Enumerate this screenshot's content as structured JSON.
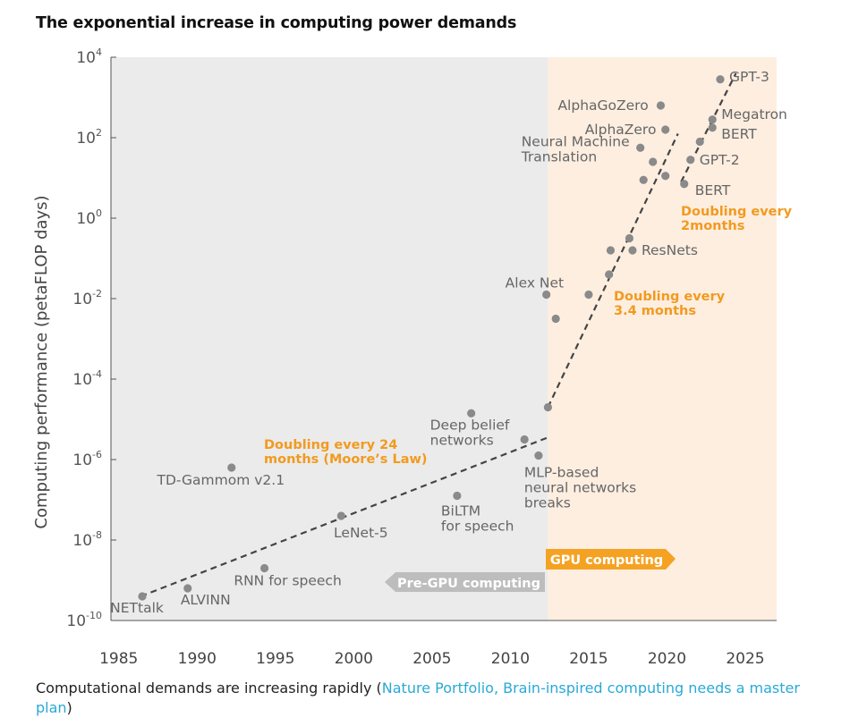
{
  "title": "The exponential increase in computing power demands",
  "caption": {
    "text": "Computational demands are increasing rapidly (",
    "source": "Nature Portfolio, Brain-inspired computing needs a master plan",
    "close": ")"
  },
  "colors": {
    "pre_gpu_bg": "#ebebeb",
    "gpu_bg": "#fdeee0",
    "point": "#8a8a8a",
    "trend": "#444444",
    "annotation_orange": "#f29a1e",
    "label_gray": "#666666",
    "pre_gpu_arrow": "#bdbdbd",
    "gpu_arrow": "#f5a223"
  },
  "chart_data": {
    "type": "scatter",
    "title": "The exponential increase in computing power demands",
    "xlabel": "",
    "ylabel": "Computing performance (petaFLOP days)",
    "xlim": [
      1984.5,
      2027
    ],
    "ylim": [
      -10,
      4
    ],
    "y_scale": "log10",
    "x_ticks": [
      1985,
      1990,
      1995,
      2000,
      2005,
      2010,
      2015,
      2020,
      2025
    ],
    "y_ticks": [
      {
        "base": "10",
        "exp": "4",
        "value": 4
      },
      {
        "base": "10",
        "exp": "2",
        "value": 2
      },
      {
        "base": "10",
        "exp": "0",
        "value": 0
      },
      {
        "base": "10",
        "exp": "-2",
        "value": -2
      },
      {
        "base": "10",
        "exp": "-4",
        "value": -4
      },
      {
        "base": "10",
        "exp": "-6",
        "value": -6
      },
      {
        "base": "10",
        "exp": "-8",
        "value": -8
      },
      {
        "base": "10",
        "exp": "-10",
        "value": -10
      }
    ],
    "regions": [
      {
        "name": "pre_gpu",
        "x_from": 1984.5,
        "x_to": 2012.4
      },
      {
        "name": "gpu",
        "x_from": 2012.4,
        "x_to": 2027
      }
    ],
    "points": [
      {
        "x": 1986.5,
        "y": -9.4,
        "label": [
          "NETtalk"
        ]
      },
      {
        "x": 1989.4,
        "y": -9.2,
        "label": [
          "ALVINN"
        ]
      },
      {
        "x": 1992.2,
        "y": -6.2,
        "label": [
          "TD-Gammom v2.1"
        ]
      },
      {
        "x": 1994.3,
        "y": -8.7,
        "label": [
          "RNN for speech"
        ]
      },
      {
        "x": 1999.2,
        "y": -7.4,
        "label": [
          "LeNet-5"
        ]
      },
      {
        "x": 2006.6,
        "y": -6.9,
        "label": [
          "BiLTM",
          "for speech"
        ]
      },
      {
        "x": 2007.5,
        "y": -4.85,
        "label": [
          "Deep belief",
          "networks"
        ]
      },
      {
        "x": 2010.9,
        "y": -5.5,
        "label": []
      },
      {
        "x": 2011.8,
        "y": -5.9,
        "label": [
          "MLP-based",
          "neural networks",
          "breaks"
        ]
      },
      {
        "x": 2012.4,
        "y": -4.7,
        "label": []
      },
      {
        "x": 2012.3,
        "y": -1.9,
        "label": [
          "Alex Net"
        ]
      },
      {
        "x": 2012.9,
        "y": -2.5,
        "label": []
      },
      {
        "x": 2015.0,
        "y": -1.9,
        "label": []
      },
      {
        "x": 2016.3,
        "y": -1.4,
        "label": []
      },
      {
        "x": 2016.4,
        "y": -0.8,
        "label": []
      },
      {
        "x": 2017.6,
        "y": -0.5,
        "label": []
      },
      {
        "x": 2017.8,
        "y": -0.8,
        "label": [
          "ResNets"
        ]
      },
      {
        "x": 2018.5,
        "y": 0.95,
        "label": []
      },
      {
        "x": 2019.1,
        "y": 1.4,
        "label": []
      },
      {
        "x": 2018.3,
        "y": 1.75,
        "label": [
          "Neural Machine",
          "Translation"
        ]
      },
      {
        "x": 2019.9,
        "y": 1.05,
        "label": []
      },
      {
        "x": 2019.9,
        "y": 2.2,
        "label": [
          "AlphaZero"
        ]
      },
      {
        "x": 2019.6,
        "y": 2.8,
        "label": [
          "AlphaGoZero"
        ]
      },
      {
        "x": 2021.1,
        "y": 0.85,
        "label": [
          "BERT"
        ]
      },
      {
        "x": 2021.5,
        "y": 1.45,
        "label": [
          "GPT-2"
        ]
      },
      {
        "x": 2022.1,
        "y": 1.9,
        "label": []
      },
      {
        "x": 2022.9,
        "y": 2.25,
        "label": [
          "BERT"
        ]
      },
      {
        "x": 2022.9,
        "y": 2.45,
        "label": [
          "Megatron"
        ]
      },
      {
        "x": 2023.4,
        "y": 3.45,
        "label": [
          "GPT-3"
        ]
      }
    ],
    "trends": [
      {
        "name": "moores_law",
        "from": [
          1986.4,
          -9.4
        ],
        "to": [
          2012.4,
          -5.45
        ]
      },
      {
        "name": "doubling_3_4_months",
        "from": [
          2012.4,
          -4.7
        ],
        "to": [
          2020.7,
          2.1
        ]
      },
      {
        "name": "doubling_2_months",
        "from": [
          2020.9,
          0.9
        ],
        "to": [
          2024.4,
          3.6
        ]
      }
    ],
    "annotations": [
      {
        "text": [
          "Doubling every 24",
          "months (Moore’s Law)"
        ]
      },
      {
        "text": [
          "Doubling every",
          "3.4 months"
        ]
      },
      {
        "text": [
          "Doubling every",
          "2months"
        ]
      }
    ],
    "region_labels": [
      {
        "text": "Pre-GPU computing"
      },
      {
        "text": "GPU computing"
      }
    ]
  }
}
